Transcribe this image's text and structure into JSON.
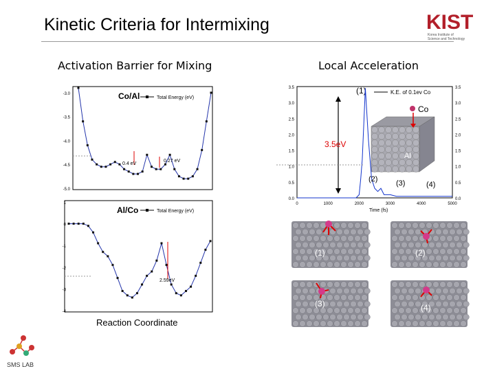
{
  "slide": {
    "title": "Kinetic Criteria for Intermixing",
    "left_heading": "Activation Barrier for Mixing",
    "right_heading": "Local Acceleration",
    "x_axis_label": "Reaction Coordinate"
  },
  "logos": {
    "org_mark": "KIST",
    "org_name_line1": "Korea Institute of",
    "org_name_line2": "Science and Technology",
    "lab_name": "SMS LAB"
  },
  "chart_data": [
    {
      "type": "line",
      "title": "Co/Al",
      "legend": "Total Energy (eV)",
      "ylim": [
        -5.0,
        -2.9
      ],
      "y_ticks": [
        "-3.0",
        "-3.5",
        "-4.0",
        "-4.5",
        "-5.0"
      ],
      "barriers": [
        {
          "label": "0.4 eV",
          "value": 0.4
        },
        {
          "label": "0.27 eV",
          "value": 0.27
        }
      ],
      "series": [
        {
          "values": [
            -2.9,
            -3.6,
            -4.1,
            -4.4,
            -4.5,
            -4.55,
            -4.55,
            -4.5,
            -4.45,
            -4.5,
            -4.6,
            -4.65,
            -4.7,
            -4.7,
            -4.65,
            -4.3,
            -4.55,
            -4.6,
            -4.6,
            -4.5,
            -4.3,
            -4.6,
            -4.75,
            -4.8,
            -4.8,
            -4.75,
            -4.6,
            -4.2,
            -3.6,
            -3.0
          ]
        }
      ]
    },
    {
      "type": "line",
      "title": "Al/Co",
      "legend": "Total Energy (eV)",
      "ylim": [
        -4.0,
        1.0
      ],
      "y_ticks": [
        "1",
        "0",
        "-1",
        "-2",
        "-3",
        "-4"
      ],
      "barriers": [
        {
          "label": "2.59eV",
          "value": 2.59
        }
      ],
      "series": [
        {
          "values": [
            0.0,
            0.0,
            0.0,
            0.0,
            -0.1,
            -0.4,
            -0.9,
            -1.3,
            -1.5,
            -1.9,
            -2.5,
            -3.1,
            -3.3,
            -3.4,
            -3.2,
            -2.8,
            -2.4,
            -2.2,
            -1.7,
            -0.9,
            -1.9,
            -2.8,
            -3.2,
            -3.3,
            -3.1,
            -2.9,
            -2.4,
            -1.8,
            -1.2,
            -0.8
          ]
        }
      ]
    },
    {
      "type": "line",
      "legend": "K.E. of  0.1ev Co",
      "xlabel": "Time (fs)",
      "xlim": [
        0,
        5000
      ],
      "ylim": [
        0.0,
        3.5
      ],
      "x_ticks": [
        "0",
        "1000",
        "2000",
        "3000",
        "4000",
        "5000"
      ],
      "y_ticks": [
        "3.5",
        "3.0",
        "2.5",
        "2.0",
        "1.5",
        "1.0",
        "0.5",
        "0.0"
      ],
      "annotations": [
        "(1)",
        "(2)",
        "(3)",
        "(4)",
        "3.5eV",
        "Co",
        "Al"
      ],
      "series": [
        {
          "x": [
            0,
            1000,
            1900,
            2000,
            2050,
            2100,
            2200,
            2300,
            2400,
            2500,
            2600,
            2700,
            2800,
            3000,
            3200,
            3500,
            4000,
            4500,
            5000
          ],
          "y": [
            0.0,
            0.0,
            0.0,
            0.1,
            0.6,
            1.2,
            3.45,
            1.8,
            0.6,
            0.3,
            0.2,
            0.3,
            0.1,
            0.1,
            0.05,
            0.05,
            0.05,
            0.05,
            0.05
          ]
        }
      ]
    }
  ],
  "snapshots": [
    "(1)",
    "(2)",
    "(3)",
    "(4)"
  ]
}
